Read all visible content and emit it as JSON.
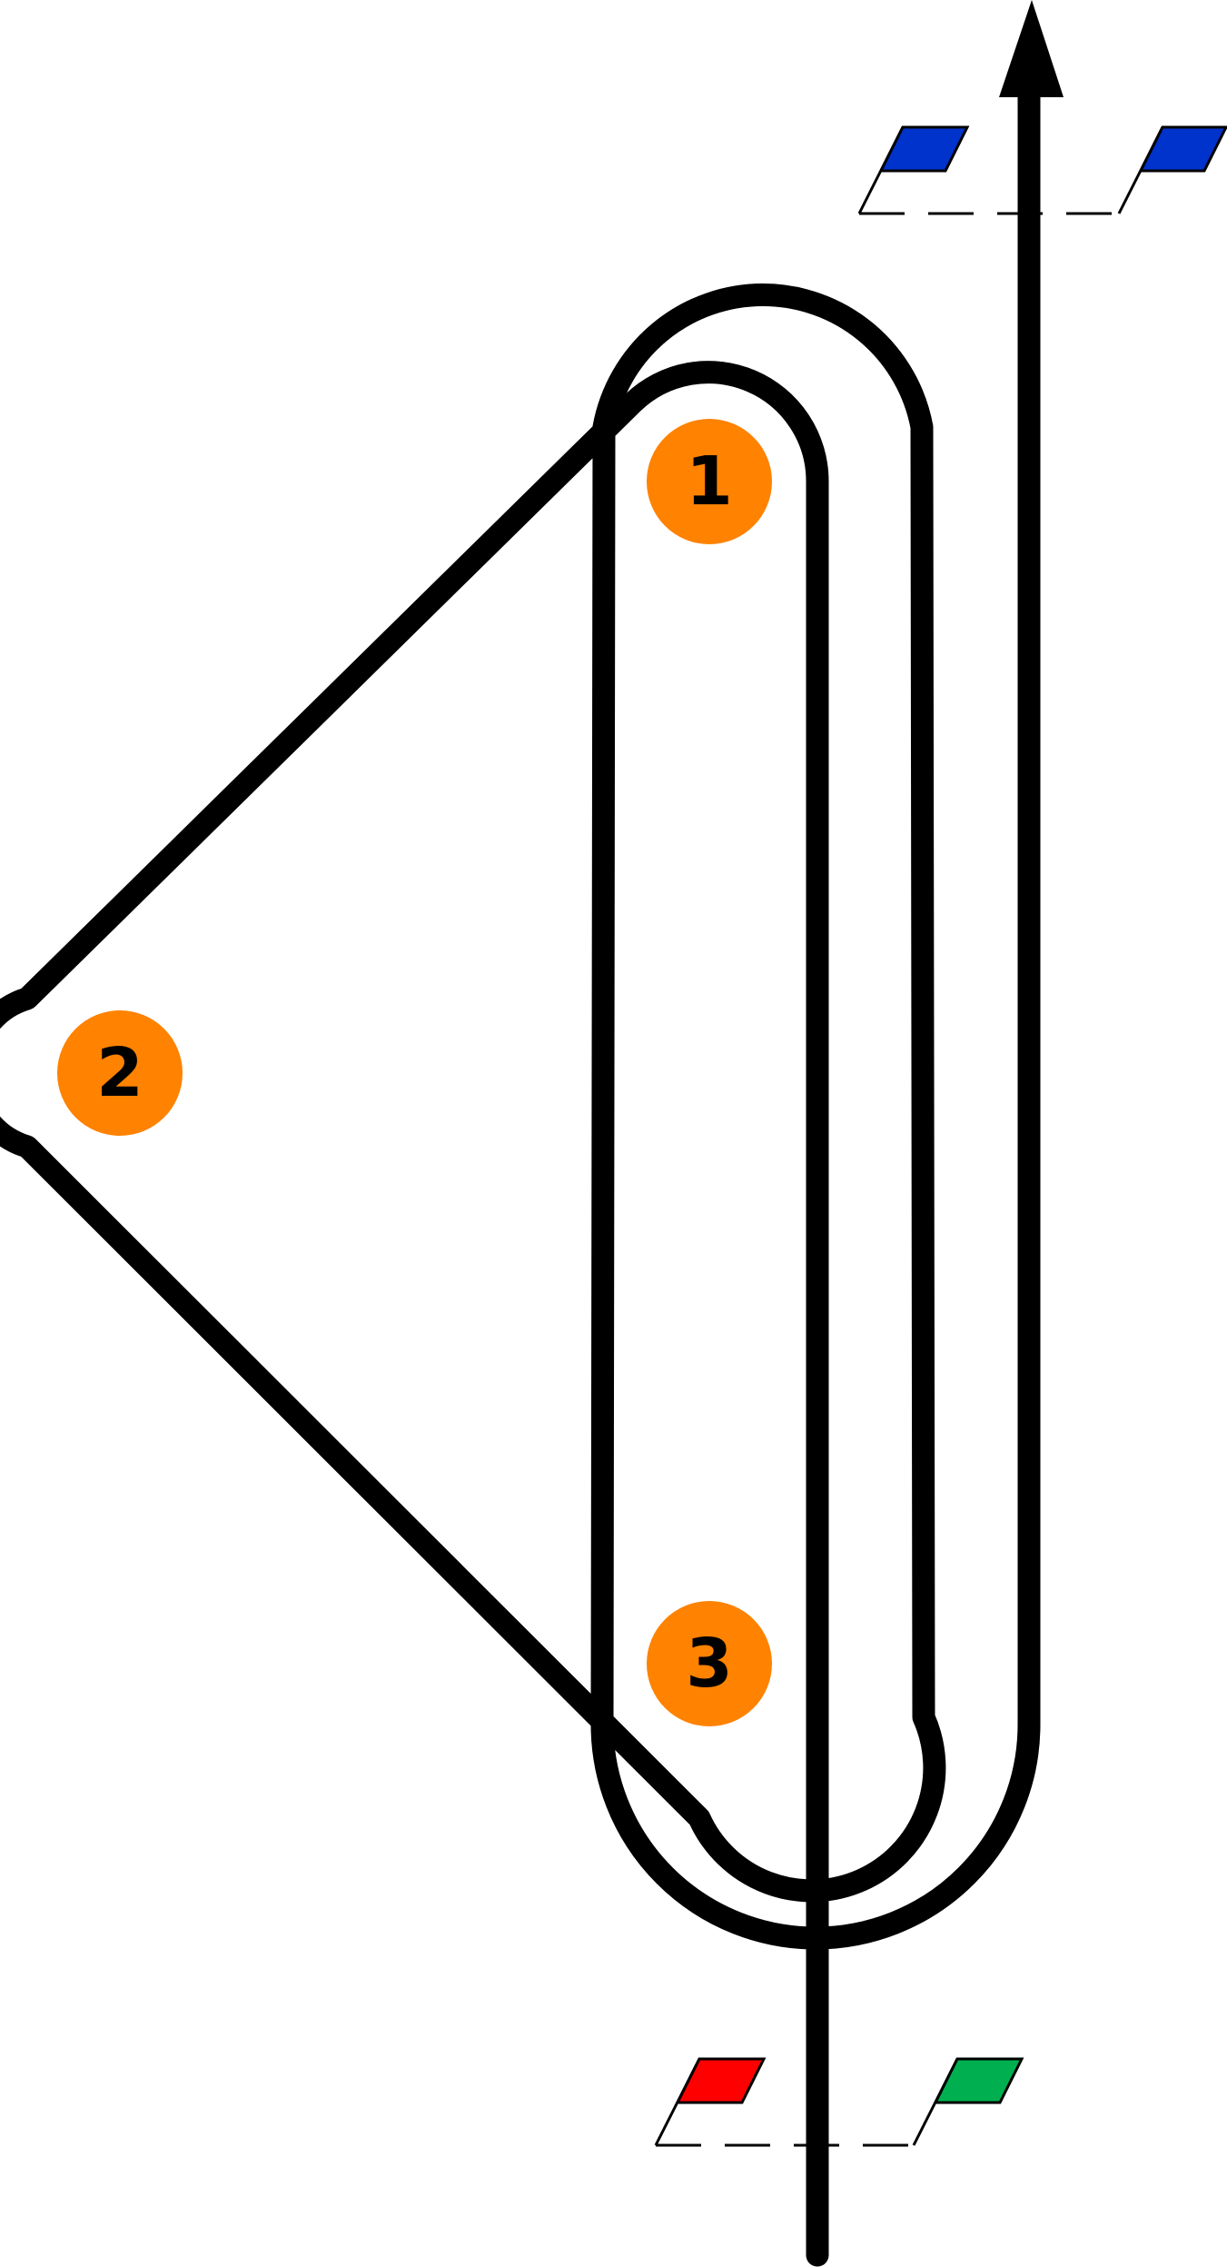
{
  "marks": [
    {
      "id": "mark-1",
      "label": "1",
      "color": "#ff8200"
    },
    {
      "id": "mark-2",
      "label": "2",
      "color": "#ff8200"
    },
    {
      "id": "mark-3",
      "label": "3",
      "color": "#ff8200"
    }
  ],
  "finish_gate": {
    "flags": [
      {
        "side": "left",
        "color": "#0033cc"
      },
      {
        "side": "right",
        "color": "#0033cc"
      }
    ]
  },
  "start_gate": {
    "flags": [
      {
        "side": "left",
        "color": "#ff0000"
      },
      {
        "side": "right",
        "color": "#00b050"
      }
    ]
  },
  "colors": {
    "course": "#000000",
    "mark": "#ff8200",
    "background": "#ffffff"
  },
  "icons": {
    "flag": "flag-icon",
    "arrow": "arrow-head-icon"
  }
}
